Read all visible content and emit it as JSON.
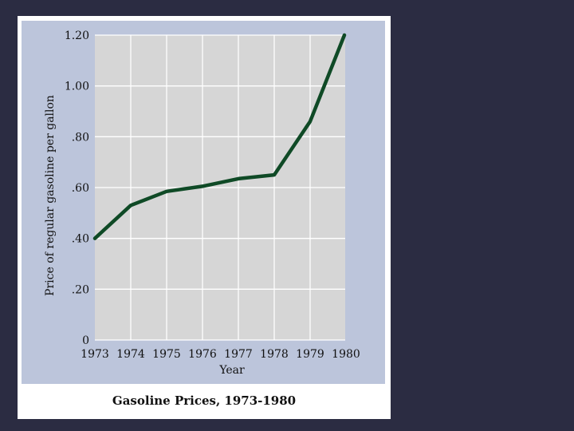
{
  "chart_data": {
    "type": "line",
    "title": "Gasoline Prices, 1973-1980",
    "xlabel": "Year",
    "ylabel": "Price of regular gasoline per gallon",
    "x_ticks": [
      "1973",
      "1974",
      "1975",
      "1976",
      "1977",
      "1978",
      "1979",
      "1980"
    ],
    "y_ticks": [
      "0",
      ".20",
      ".40",
      ".60",
      ".80",
      "1.00",
      "1.20"
    ],
    "xlim": [
      1973,
      1980
    ],
    "ylim": [
      0,
      1.2
    ],
    "grid": true,
    "colors": {
      "line": "#0f4a26",
      "plot_bg": "#d6d6d6",
      "panel_bg": "#bcc5db",
      "grid": "#ffffff"
    },
    "series": [
      {
        "x": [
          1973,
          1974,
          1975,
          1976,
          1977,
          1978,
          1979,
          1980
        ],
        "y": [
          0.4,
          0.53,
          0.585,
          0.605,
          0.635,
          0.65,
          0.86,
          1.2
        ]
      }
    ]
  }
}
